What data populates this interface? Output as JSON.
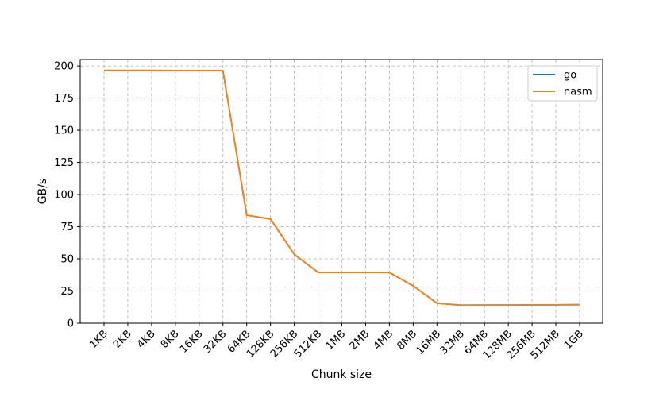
{
  "chart_data": {
    "type": "line",
    "title": "",
    "xlabel": "Chunk size",
    "ylabel": "GB/s",
    "categories": [
      "1KB",
      "2KB",
      "4KB",
      "8KB",
      "16KB",
      "32KB",
      "64KB",
      "128KB",
      "256KB",
      "512KB",
      "1MB",
      "2MB",
      "4MB",
      "8MB",
      "16MB",
      "32MB",
      "64MB",
      "128MB",
      "256MB",
      "512MB",
      "1GB"
    ],
    "ylim": [
      0,
      205
    ],
    "yticks": [
      0,
      25,
      50,
      75,
      100,
      125,
      150,
      175,
      200
    ],
    "grid": true,
    "legend_position": "top-right",
    "series": [
      {
        "name": "go",
        "color": "#1f77b4",
        "values": [
          196.5,
          196.5,
          196.5,
          196.4,
          196.4,
          196.3,
          84.0,
          81.0,
          53.5,
          39.5,
          39.5,
          39.5,
          39.4,
          29.0,
          15.5,
          14.0,
          14.1,
          14.1,
          14.2,
          14.3,
          14.4
        ]
      },
      {
        "name": "nasm",
        "color": "#ff7f0e",
        "values": [
          196.5,
          196.5,
          196.5,
          196.4,
          196.4,
          196.3,
          84.0,
          81.0,
          53.5,
          39.5,
          39.5,
          39.5,
          39.4,
          29.0,
          15.5,
          14.0,
          14.1,
          14.1,
          14.2,
          14.3,
          14.4
        ]
      }
    ]
  }
}
